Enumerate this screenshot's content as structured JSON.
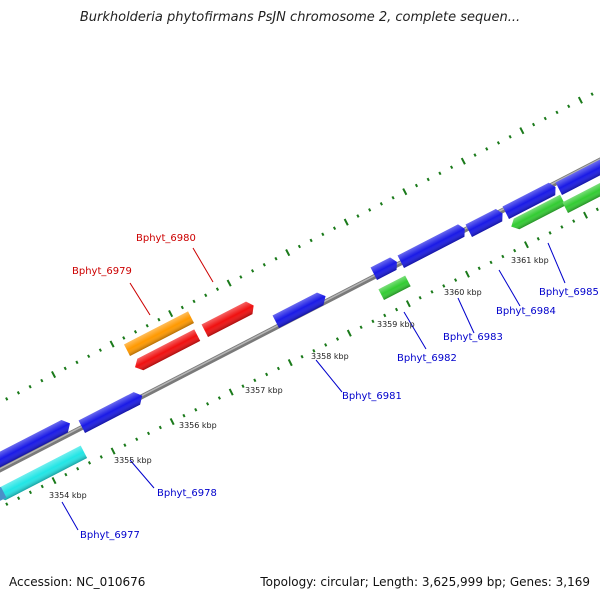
{
  "header": {
    "title": "Burkholderia phytofirmans PsJN chromosome 2, complete sequen..."
  },
  "footer": {
    "accession": "Accession: NC_010676",
    "summary": "Topology: circular; Length: 3,625,999 bp; Genes: 3,169"
  },
  "colors": {
    "backbone": "#8c8c8c",
    "tick": "#1a7a1a",
    "blue": "#1a1ae6",
    "red": "#f01010",
    "orange": "#ff9900",
    "green": "#33cc33",
    "cyan": "#22e5e5",
    "label_forward": "#0000cc",
    "label_reverse": "#cc0000"
  },
  "ticks": [
    {
      "label": "3354 kbp"
    },
    {
      "label": "3355 kbp"
    },
    {
      "label": "3356 kbp"
    },
    {
      "label": "3357 kbp"
    },
    {
      "label": "3358 kbp"
    },
    {
      "label": "3359 kbp"
    },
    {
      "label": "3360 kbp"
    },
    {
      "label": "3361 kbp"
    }
  ],
  "genes": [
    {
      "name": "Bphyt_6977",
      "color": "blue"
    },
    {
      "name": "Bphyt_6978",
      "color": "blue"
    },
    {
      "name": "Bphyt_6979",
      "color": "red"
    },
    {
      "name": "Bphyt_6980",
      "color": "red"
    },
    {
      "name": "Bphyt_6981",
      "color": "blue"
    },
    {
      "name": "Bphyt_6982",
      "color": "blue"
    },
    {
      "name": "Bphyt_6983",
      "color": "blue"
    },
    {
      "name": "Bphyt_6984",
      "color": "blue"
    },
    {
      "name": "Bphyt_6985",
      "color": "blue"
    }
  ]
}
